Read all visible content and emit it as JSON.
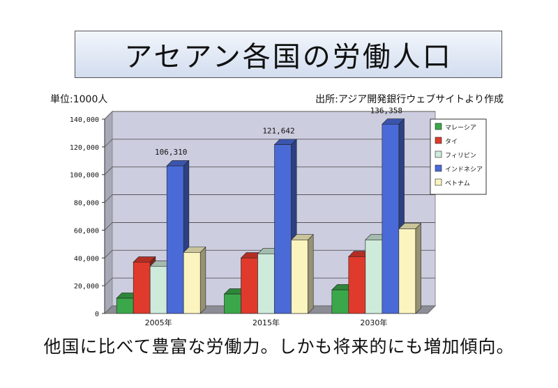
{
  "title": "アセアン各国の労働人口",
  "unit_note": "単位:1000人",
  "source_note": "出所:アジア開発銀行ウェブサイトより作成",
  "caption": "他国に比べて豊富な労働力。しかも将来的にも増加傾向。",
  "chart_data": {
    "type": "bar",
    "categories": [
      "2005年",
      "2015年",
      "2030年"
    ],
    "series": [
      {
        "name": "マレーシア",
        "color": "#3aa84a",
        "values": [
          11000,
          14000,
          17000
        ]
      },
      {
        "name": "タイ",
        "color": "#e03a2c",
        "values": [
          37000,
          40000,
          41000
        ]
      },
      {
        "name": "フィリピン",
        "color": "#cdeadb",
        "values": [
          34000,
          43000,
          53000
        ]
      },
      {
        "name": "インドネシア",
        "color": "#4a6ad8",
        "values": [
          106310,
          121642,
          136358
        ]
      },
      {
        "name": "ベトナム",
        "color": "#fbf4bf",
        "values": [
          44000,
          53000,
          61000
        ]
      }
    ],
    "data_labels": [
      "106,310",
      "121,642",
      "136,358"
    ],
    "y_ticks": [
      "0",
      "20,000",
      "40,000",
      "60,000",
      "80,000",
      "100,000",
      "120,000",
      "140,000"
    ],
    "ylim": [
      0,
      140000
    ],
    "grid": true,
    "style": "3d",
    "legend_position": "right"
  }
}
